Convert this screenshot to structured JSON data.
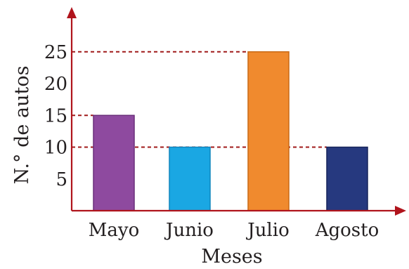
{
  "chart_data": {
    "type": "bar",
    "categories": [
      "Mayo",
      "Junio",
      "Julio",
      "Agosto"
    ],
    "values": [
      15,
      10,
      25,
      10
    ],
    "bar_colors": [
      "#8e4a9f",
      "#1aa7e3",
      "#f08a2e",
      "#26397f"
    ],
    "bar_edge_colors": [
      "#6a2f7a",
      "#0f86bd",
      "#c96a16",
      "#16245a"
    ],
    "title": "",
    "xlabel": "Meses",
    "ylabel": "N.° de autos",
    "ylim": [
      0,
      29
    ],
    "yticks": [
      5,
      10,
      15,
      20,
      25
    ],
    "reference_lines": [
      10,
      15,
      25
    ],
    "axis_color": "#b0141c",
    "reference_line_color": "#a01a1a",
    "grid": false,
    "legend": "none"
  }
}
